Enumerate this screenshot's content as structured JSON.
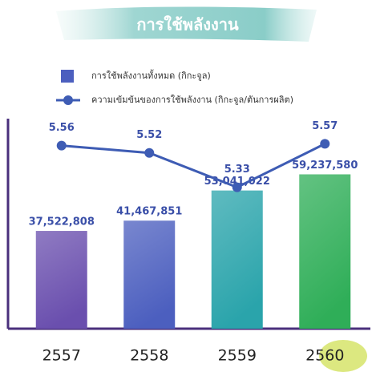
{
  "chart_data": {
    "type": "bar",
    "title": "การใช้พลังงาน",
    "categories": [
      "2557",
      "2558",
      "2559",
      "2560"
    ],
    "series": [
      {
        "name": "การใช้พลังงานทั้งหมด (กิกะจูล)",
        "type": "bar",
        "colors": [
          "#6a4fae",
          "#4c5fbf",
          "#2aa4ab",
          "#2fae58"
        ],
        "values": [
          37522808,
          41467851,
          53041022,
          59237580
        ],
        "value_labels": [
          "37,522,808",
          "41,467,851",
          "53,041,022",
          "59,237,580"
        ]
      },
      {
        "name": "ความเข้มข้นของการใช้พลังงาน (กิกะจูล/ตันการผลิต)",
        "type": "line",
        "color": "#3e5cb4",
        "axis": "y2",
        "values": [
          5.56,
          5.52,
          5.33,
          5.57
        ]
      }
    ],
    "ylim": [
      0,
      80000000
    ],
    "y2lim": [
      4.55,
      5.7
    ]
  }
}
